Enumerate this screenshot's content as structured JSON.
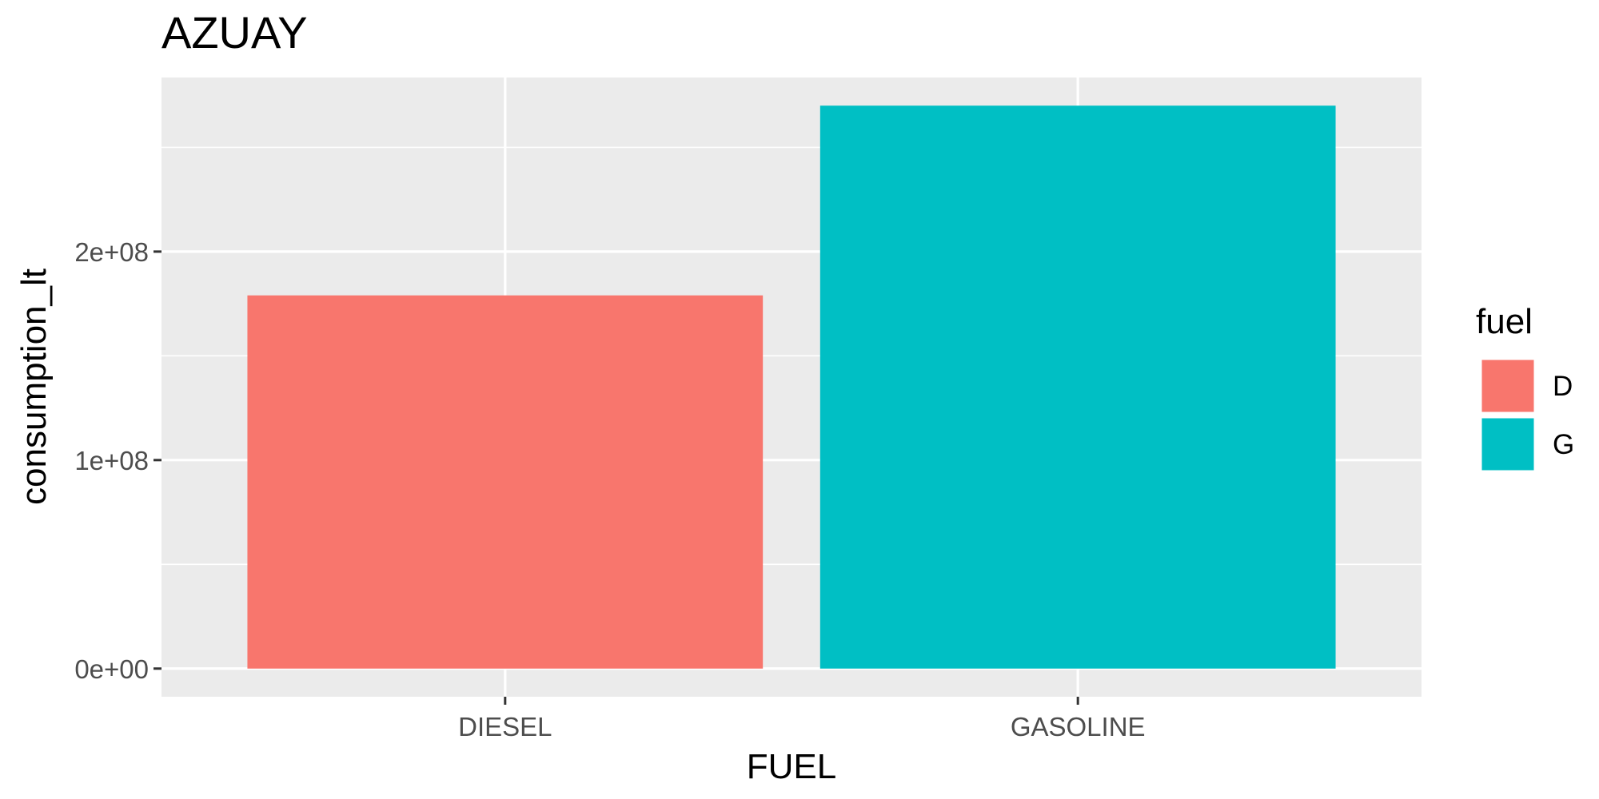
{
  "chart_data": {
    "type": "bar",
    "title": "AZUAY",
    "xlabel": "FUEL",
    "ylabel": "consumption_lt",
    "categories": [
      "DIESEL",
      "GASOLINE"
    ],
    "values": [
      179000000,
      270000000
    ],
    "fill_groups": [
      "D",
      "G"
    ],
    "ylim": [
      -13500000,
      283500000
    ],
    "y_ticks": [
      0,
      100000000,
      200000000
    ],
    "y_tick_labels": [
      "0e+00",
      "1e+08",
      "2e+08"
    ],
    "y_minor_ticks": [
      50000000,
      150000000,
      250000000
    ],
    "grid": true,
    "legend": {
      "title": "fuel",
      "position": "right",
      "entries": [
        {
          "label": "D",
          "color": "#F8766D"
        },
        {
          "label": "G",
          "color": "#00BFC4"
        }
      ]
    },
    "colors": {
      "panel_background": "#EBEBEB",
      "gridline": "#FFFFFF",
      "tick_text": "#4D4D4D",
      "tick_mark": "#333333"
    }
  }
}
